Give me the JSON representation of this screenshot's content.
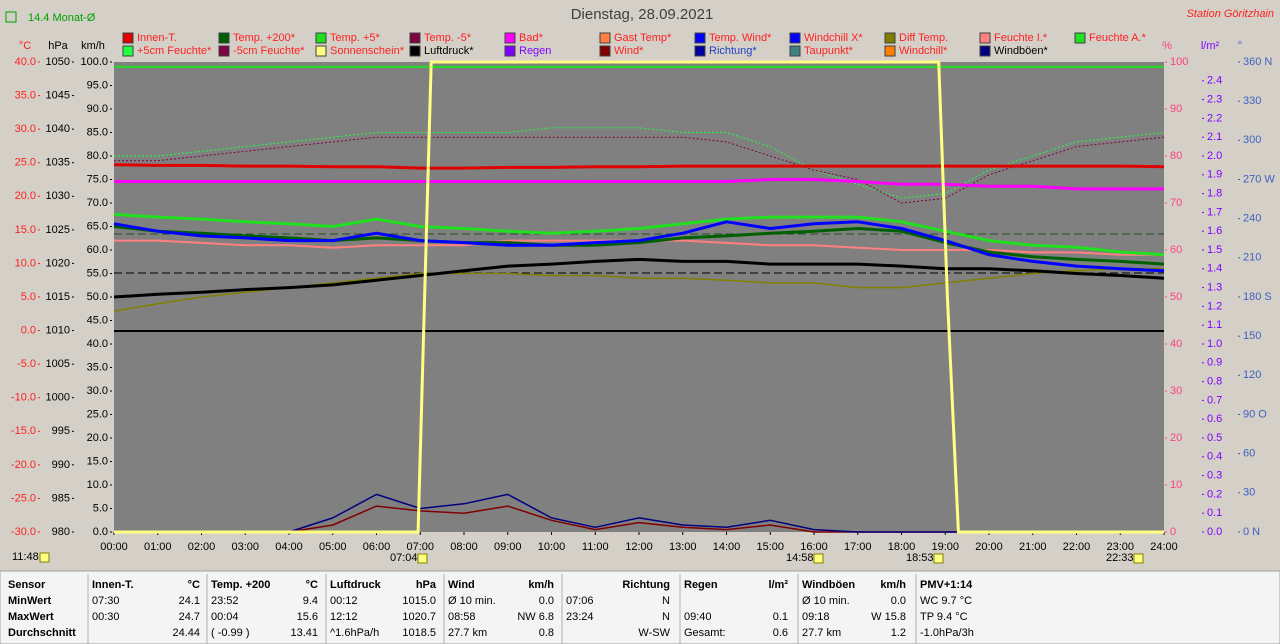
{
  "title": "Dienstag, 28.09.2021",
  "station": "Station Göritzhain",
  "month_avg": "14.4 Monat-Ø",
  "markers": [
    "11:48",
    "07:04",
    "14:58",
    "18:53",
    "22:33"
  ],
  "chart_data": {
    "type": "line",
    "x": [
      0,
      1,
      2,
      3,
      4,
      5,
      6,
      7,
      8,
      9,
      10,
      11,
      12,
      13,
      14,
      15,
      16,
      17,
      18,
      19,
      20,
      21,
      22,
      23,
      24
    ],
    "xlim": [
      0,
      24
    ],
    "xticks": [
      {
        "value": 0,
        "label": "00:00"
      },
      {
        "value": 1,
        "label": "01:00"
      },
      {
        "value": 2,
        "label": "02:00"
      },
      {
        "value": 3,
        "label": "03:00"
      },
      {
        "value": 4,
        "label": "04:00"
      },
      {
        "value": 5,
        "label": "05:00"
      },
      {
        "value": 6,
        "label": "06:00"
      },
      {
        "value": 7,
        "label": "07:00"
      },
      {
        "value": 8,
        "label": "08:00"
      },
      {
        "value": 9,
        "label": "09:00"
      },
      {
        "value": 10,
        "label": "10:00"
      },
      {
        "value": 11,
        "label": "11:00"
      },
      {
        "value": 12,
        "label": "12:00"
      },
      {
        "value": 13,
        "label": "13:00"
      },
      {
        "value": 14,
        "label": "14:00"
      },
      {
        "value": 15,
        "label": "15:00"
      },
      {
        "value": 16,
        "label": "16:00"
      },
      {
        "value": 17,
        "label": "17:00"
      },
      {
        "value": 18,
        "label": "18:00"
      },
      {
        "value": 19,
        "label": "19:00"
      },
      {
        "value": 20,
        "label": "20:00"
      },
      {
        "value": 21,
        "label": "21:00"
      },
      {
        "value": 22,
        "label": "22:00"
      },
      {
        "value": 23,
        "label": "23:00"
      },
      {
        "value": 24,
        "label": "24:00"
      }
    ],
    "axes": [
      {
        "id": "c",
        "side": "left",
        "title": "°C",
        "color": "#ff2020",
        "lim": [
          -30,
          40
        ],
        "ticks": [
          {
            "value": -30,
            "label": "-30.0"
          },
          {
            "value": -25,
            "label": "-25.0"
          },
          {
            "value": -20,
            "label": "-20.0"
          },
          {
            "value": -15,
            "label": "-15.0"
          },
          {
            "value": -10,
            "label": "-10.0"
          },
          {
            "value": -5,
            "label": "-5.0"
          },
          {
            "value": 0,
            "label": "0.0"
          },
          {
            "value": 5,
            "label": "5.0"
          },
          {
            "value": 10,
            "label": "10.0"
          },
          {
            "value": 15,
            "label": "15.0"
          },
          {
            "value": 20,
            "label": "20.0"
          },
          {
            "value": 25,
            "label": "25.0"
          },
          {
            "value": 30,
            "label": "30.0"
          },
          {
            "value": 35,
            "label": "35.0"
          },
          {
            "value": 40,
            "label": "40.0"
          }
        ]
      },
      {
        "id": "hpa",
        "side": "left",
        "title": "hPa",
        "color": "#000000",
        "lim": [
          980,
          1050
        ],
        "ticks": [
          980,
          985,
          990,
          995,
          1000,
          1005,
          1010,
          1015,
          1020,
          1025,
          1030,
          1035,
          1040,
          1045,
          1050
        ]
      },
      {
        "id": "kmh",
        "side": "left",
        "title": "km/h",
        "color": "#000000",
        "lim": [
          0,
          100
        ],
        "ticks": [
          {
            "value": 0,
            "label": "0.0"
          },
          {
            "value": 5,
            "label": "5.0"
          },
          {
            "value": 10,
            "label": "10.0"
          },
          {
            "value": 15,
            "label": "15.0"
          },
          {
            "value": 20,
            "label": "20.0"
          },
          {
            "value": 25,
            "label": "25.0"
          },
          {
            "value": 30,
            "label": "30.0"
          },
          {
            "value": 35,
            "label": "35.0"
          },
          {
            "value": 40,
            "label": "40.0"
          },
          {
            "value": 45,
            "label": "45.0"
          },
          {
            "value": 50,
            "label": "50.0"
          },
          {
            "value": 55,
            "label": "55.0"
          },
          {
            "value": 60,
            "label": "60.0"
          },
          {
            "value": 65,
            "label": "65.0"
          },
          {
            "value": 70,
            "label": "70.0"
          },
          {
            "value": 75,
            "label": "75.0"
          },
          {
            "value": 80,
            "label": "80.0"
          },
          {
            "value": 85,
            "label": "85.0"
          },
          {
            "value": 90,
            "label": "90.0"
          },
          {
            "value": 95,
            "label": "95.0"
          },
          {
            "value": 100,
            "label": "100.0"
          }
        ]
      },
      {
        "id": "pct",
        "side": "right",
        "title": "%",
        "color": "#ff4080",
        "lim": [
          0,
          100
        ],
        "ticks": [
          0,
          10,
          20,
          30,
          40,
          50,
          60,
          70,
          80,
          90,
          100
        ]
      },
      {
        "id": "lm2",
        "side": "right",
        "title": "l/m²",
        "color": "#8000ff",
        "lim": [
          0,
          2.5
        ],
        "ticks": [
          {
            "value": 0,
            "label": "0.0"
          },
          0.1,
          0.2,
          0.3,
          0.4,
          0.5,
          0.6,
          0.7,
          0.8,
          0.9,
          {
            "value": 1,
            "label": "1.0"
          },
          1.1,
          1.2,
          1.3,
          1.4,
          1.5,
          1.6,
          1.7,
          1.8,
          1.9,
          {
            "value": 2,
            "label": "2.0"
          },
          2.1,
          2.2,
          2.3,
          2.4
        ]
      },
      {
        "id": "deg",
        "side": "right",
        "title": "°",
        "color": "#4060c0",
        "lim": [
          0,
          360
        ],
        "ticks": [
          {
            "value": 0,
            "label": "0 N"
          },
          30,
          60,
          {
            "value": 90,
            "label": "90 O"
          },
          120,
          150,
          {
            "value": 180,
            "label": "180 S"
          },
          210,
          240,
          {
            "value": 270,
            "label": "270 W"
          },
          300,
          330,
          {
            "value": 360,
            "label": "360 N"
          }
        ]
      }
    ],
    "series": [
      {
        "name": "Innen-T.",
        "color": "#e00000",
        "label_color": "#ff2020",
        "axis": "c",
        "width": 3,
        "values": [
          24.7,
          24.6,
          24.6,
          24.5,
          24.5,
          24.4,
          24.4,
          24.2,
          24.2,
          24.3,
          24.3,
          24.4,
          24.4,
          24.5,
          24.5,
          24.5,
          24.5,
          24.5,
          24.5,
          24.5,
          24.5,
          24.5,
          24.5,
          24.5,
          24.4
        ]
      },
      {
        "name": "Temp. +200*",
        "color": "#006000",
        "label_color": "#ff2020",
        "axis": "c",
        "width": 3,
        "values": [
          15.5,
          14.8,
          14.5,
          14.1,
          13.8,
          13.4,
          13.8,
          13.4,
          13.1,
          13.1,
          12.7,
          12.7,
          13.1,
          13.8,
          14.1,
          14.5,
          14.8,
          15.2,
          14.8,
          13.1,
          11.7,
          11.0,
          10.6,
          10.3,
          9.9
        ]
      },
      {
        "name": "Temp. +5*",
        "color": "#20e020",
        "label_color": "#ff2020",
        "axis": "c",
        "width": 3,
        "values": [
          17.3,
          16.9,
          16.6,
          16.2,
          15.9,
          15.5,
          16.6,
          15.5,
          15.2,
          14.8,
          14.5,
          14.8,
          15.2,
          15.9,
          16.6,
          16.9,
          16.9,
          16.9,
          16.2,
          14.8,
          13.4,
          12.7,
          12.4,
          11.7,
          11.3
        ]
      },
      {
        "name": "Temp. -5*",
        "color": "#800040",
        "label_color": "#ff2020"
      },
      {
        "name": "Bad*",
        "color": "#ff00ff",
        "label_color": "#ff2020",
        "axis": "c",
        "width": 3,
        "values": [
          22.2,
          22.2,
          22.2,
          22.2,
          22.2,
          22.2,
          22.2,
          22.2,
          22.2,
          22.2,
          22.2,
          22.2,
          22.2,
          22.2,
          22.2,
          22.5,
          22.5,
          22.2,
          21.8,
          21.8,
          21.5,
          21.5,
          21.1,
          21.1,
          21.1
        ]
      },
      {
        "name": "Gast Temp*",
        "color": "#ff8040",
        "label_color": "#ff2020"
      },
      {
        "name": "Temp. Wind*",
        "color": "#0000ff",
        "label_color": "#ff2020",
        "axis": "c",
        "width": 3,
        "values": [
          15.9,
          14.8,
          14.1,
          13.8,
          13.4,
          13.4,
          14.5,
          13.4,
          13.1,
          12.7,
          12.7,
          13.1,
          13.4,
          14.5,
          16.2,
          15.2,
          15.9,
          16.2,
          15.2,
          13.4,
          11.3,
          10.3,
          9.6,
          9.2,
          8.9
        ]
      },
      {
        "name": "Windchill X*",
        "color": "#0000ff",
        "label_color": "#ff2020"
      },
      {
        "name": "Diff Temp.",
        "color": "#808000",
        "label_color": "#ff2020",
        "axis": "c",
        "width": 1.5,
        "values": [
          2.9,
          4.0,
          5.0,
          5.7,
          6.4,
          7.1,
          7.8,
          8.5,
          8.5,
          8.5,
          8.2,
          8.2,
          7.8,
          7.8,
          7.5,
          7.1,
          7.1,
          6.4,
          6.4,
          7.1,
          7.8,
          8.5,
          8.9,
          9.2,
          9.2
        ]
      },
      {
        "name": "Feuchte I.*",
        "color": "#ff8080",
        "label_color": "#ff2020",
        "axis": "pct",
        "width": 2,
        "values": [
          62,
          62,
          61.5,
          61,
          61,
          60.5,
          61,
          61,
          61,
          62,
          62,
          62,
          62,
          62,
          61.5,
          61,
          61,
          60.5,
          60,
          60,
          60,
          59.5,
          59.5,
          59,
          59
        ]
      },
      {
        "name": "Feuchte A.*",
        "color": "#20e020",
        "label_color": "#ff2020",
        "axis": "pct",
        "width": 2,
        "values": [
          99,
          99,
          99,
          99,
          99,
          99,
          99,
          99,
          99,
          99,
          99,
          99,
          99,
          99,
          99,
          99,
          99,
          99,
          99,
          99,
          99,
          99,
          99,
          99,
          99
        ]
      },
      {
        "name": "+5cm Feuchte*",
        "color": "#20ff40",
        "label_color": "#ff2020",
        "axis": "pct",
        "width": 1,
        "dash": "2 2",
        "values": [
          80,
          80,
          81,
          82,
          83,
          84,
          85,
          85,
          85,
          85,
          86,
          86,
          86,
          85,
          85,
          82,
          77,
          74,
          71,
          72,
          77,
          80,
          83,
          84,
          85
        ]
      },
      {
        "name": "-5cm Feuchte*",
        "color": "#800040",
        "label_color": "#ff2020",
        "axis": "pct",
        "width": 1,
        "dash": "2 2",
        "values": [
          79,
          79,
          80,
          81,
          82,
          83,
          84,
          84,
          84,
          84,
          84,
          84,
          84,
          84,
          83,
          80,
          77,
          75,
          70,
          71,
          76,
          79,
          82,
          83,
          84
        ]
      },
      {
        "name": "Sonnenschein*",
        "color": "#ffff80",
        "label_color": "#ff2020",
        "axis": "pct",
        "width": 3,
        "x": [
          0,
          6.95,
          7.1,
          7.25,
          18.85,
          19.05,
          19.3,
          24
        ],
        "values": [
          0,
          0,
          50,
          100,
          100,
          50,
          0,
          0
        ]
      },
      {
        "name": "Luftdruck*",
        "color": "#000000",
        "label_color": "#000000",
        "axis": "hpa",
        "width": 3,
        "values": [
          1015.0,
          1015.4,
          1015.7,
          1016.1,
          1016.4,
          1016.8,
          1017.5,
          1018.2,
          1018.9,
          1019.6,
          1019.9,
          1020.3,
          1020.6,
          1020.3,
          1020.3,
          1019.9,
          1019.9,
          1019.9,
          1019.6,
          1019.2,
          1019.2,
          1018.9,
          1018.5,
          1018.2,
          1017.8
        ]
      },
      {
        "name": "Regen",
        "color": "#8000ff",
        "label_color": "#8000ff"
      },
      {
        "name": "Wind*",
        "color": "#800000",
        "label_color": "#ff2020",
        "axis": "kmh",
        "width": 1.5,
        "values": [
          0,
          0,
          0,
          0,
          0,
          1.5,
          5.5,
          4.5,
          4,
          5.5,
          2.5,
          0.5,
          2,
          1,
          0.5,
          1.5,
          0,
          0,
          0,
          0,
          0,
          0,
          0,
          0,
          0
        ]
      },
      {
        "name": "Richtung*",
        "color": "#0000a0",
        "label_color": "#2040c0"
      },
      {
        "name": "Taupunkt*",
        "color": "#408080",
        "label_color": "#ff2020"
      },
      {
        "name": "Windchill*",
        "color": "#ff8000",
        "label_color": "#ff2020"
      },
      {
        "name": "Windböen*",
        "color": "#000080",
        "label_color": "#000000",
        "axis": "kmh",
        "width": 1.5,
        "values": [
          0,
          0,
          0,
          0,
          0,
          3,
          8,
          5,
          6,
          8,
          3,
          1,
          3,
          1.5,
          1,
          2.5,
          0.5,
          0,
          0,
          0,
          0,
          0,
          0,
          0,
          0
        ]
      }
    ]
  },
  "table": {
    "columns": [
      {
        "header": [
          "Sensor"
        ],
        "rows": [
          [
            "MinWert"
          ],
          [
            "MaxWert"
          ],
          [
            "Durchschnitt"
          ]
        ]
      },
      {
        "header": [
          "Innen-T.",
          "°C"
        ],
        "rows": [
          [
            "07:30",
            "24.1"
          ],
          [
            "00:30",
            "24.7"
          ],
          [
            "24.44"
          ]
        ]
      },
      {
        "header": [
          "Temp. +200",
          "°C"
        ],
        "rows": [
          [
            "23:52",
            "9.4"
          ],
          [
            "00:04",
            "15.6"
          ],
          [
            "( -0.99 )",
            "13.41"
          ]
        ]
      },
      {
        "header": [
          "Luftdruck",
          "hPa"
        ],
        "rows": [
          [
            "00:12",
            "1015.0"
          ],
          [
            "12:12",
            "1020.7"
          ],
          [
            "^1.6hPa/h",
            "1018.5"
          ]
        ]
      },
      {
        "header": [
          "Wind",
          "km/h"
        ],
        "rows": [
          [
            "Ø 10 min.",
            "0.0"
          ],
          [
            "08:58",
            "NW 6.8"
          ],
          [
            "27.7 km",
            "0.8"
          ]
        ]
      },
      {
        "header": [
          "Richtung"
        ],
        "rows": [
          [
            "07:06",
            "N"
          ],
          [
            "23:24",
            "N"
          ],
          [
            "W-SW"
          ]
        ]
      },
      {
        "header": [
          "Regen",
          "l/m²"
        ],
        "rows": [
          [],
          [
            "09:40",
            "0.1"
          ],
          [
            "Gesamt:",
            "0.6"
          ]
        ]
      },
      {
        "header": [
          "Windböen",
          "km/h"
        ],
        "rows": [
          [
            "Ø 10 min.",
            "0.0"
          ],
          [
            "09:18",
            "W 15.8"
          ],
          [
            "27.7 km",
            "1.2"
          ]
        ]
      },
      {
        "header": [
          "PMV+1:14"
        ],
        "rows": [
          [
            "WC 9.7 °C"
          ],
          [
            "TP 9.4 °C"
          ],
          [
            "-1.0hPa/3h"
          ]
        ]
      }
    ]
  }
}
